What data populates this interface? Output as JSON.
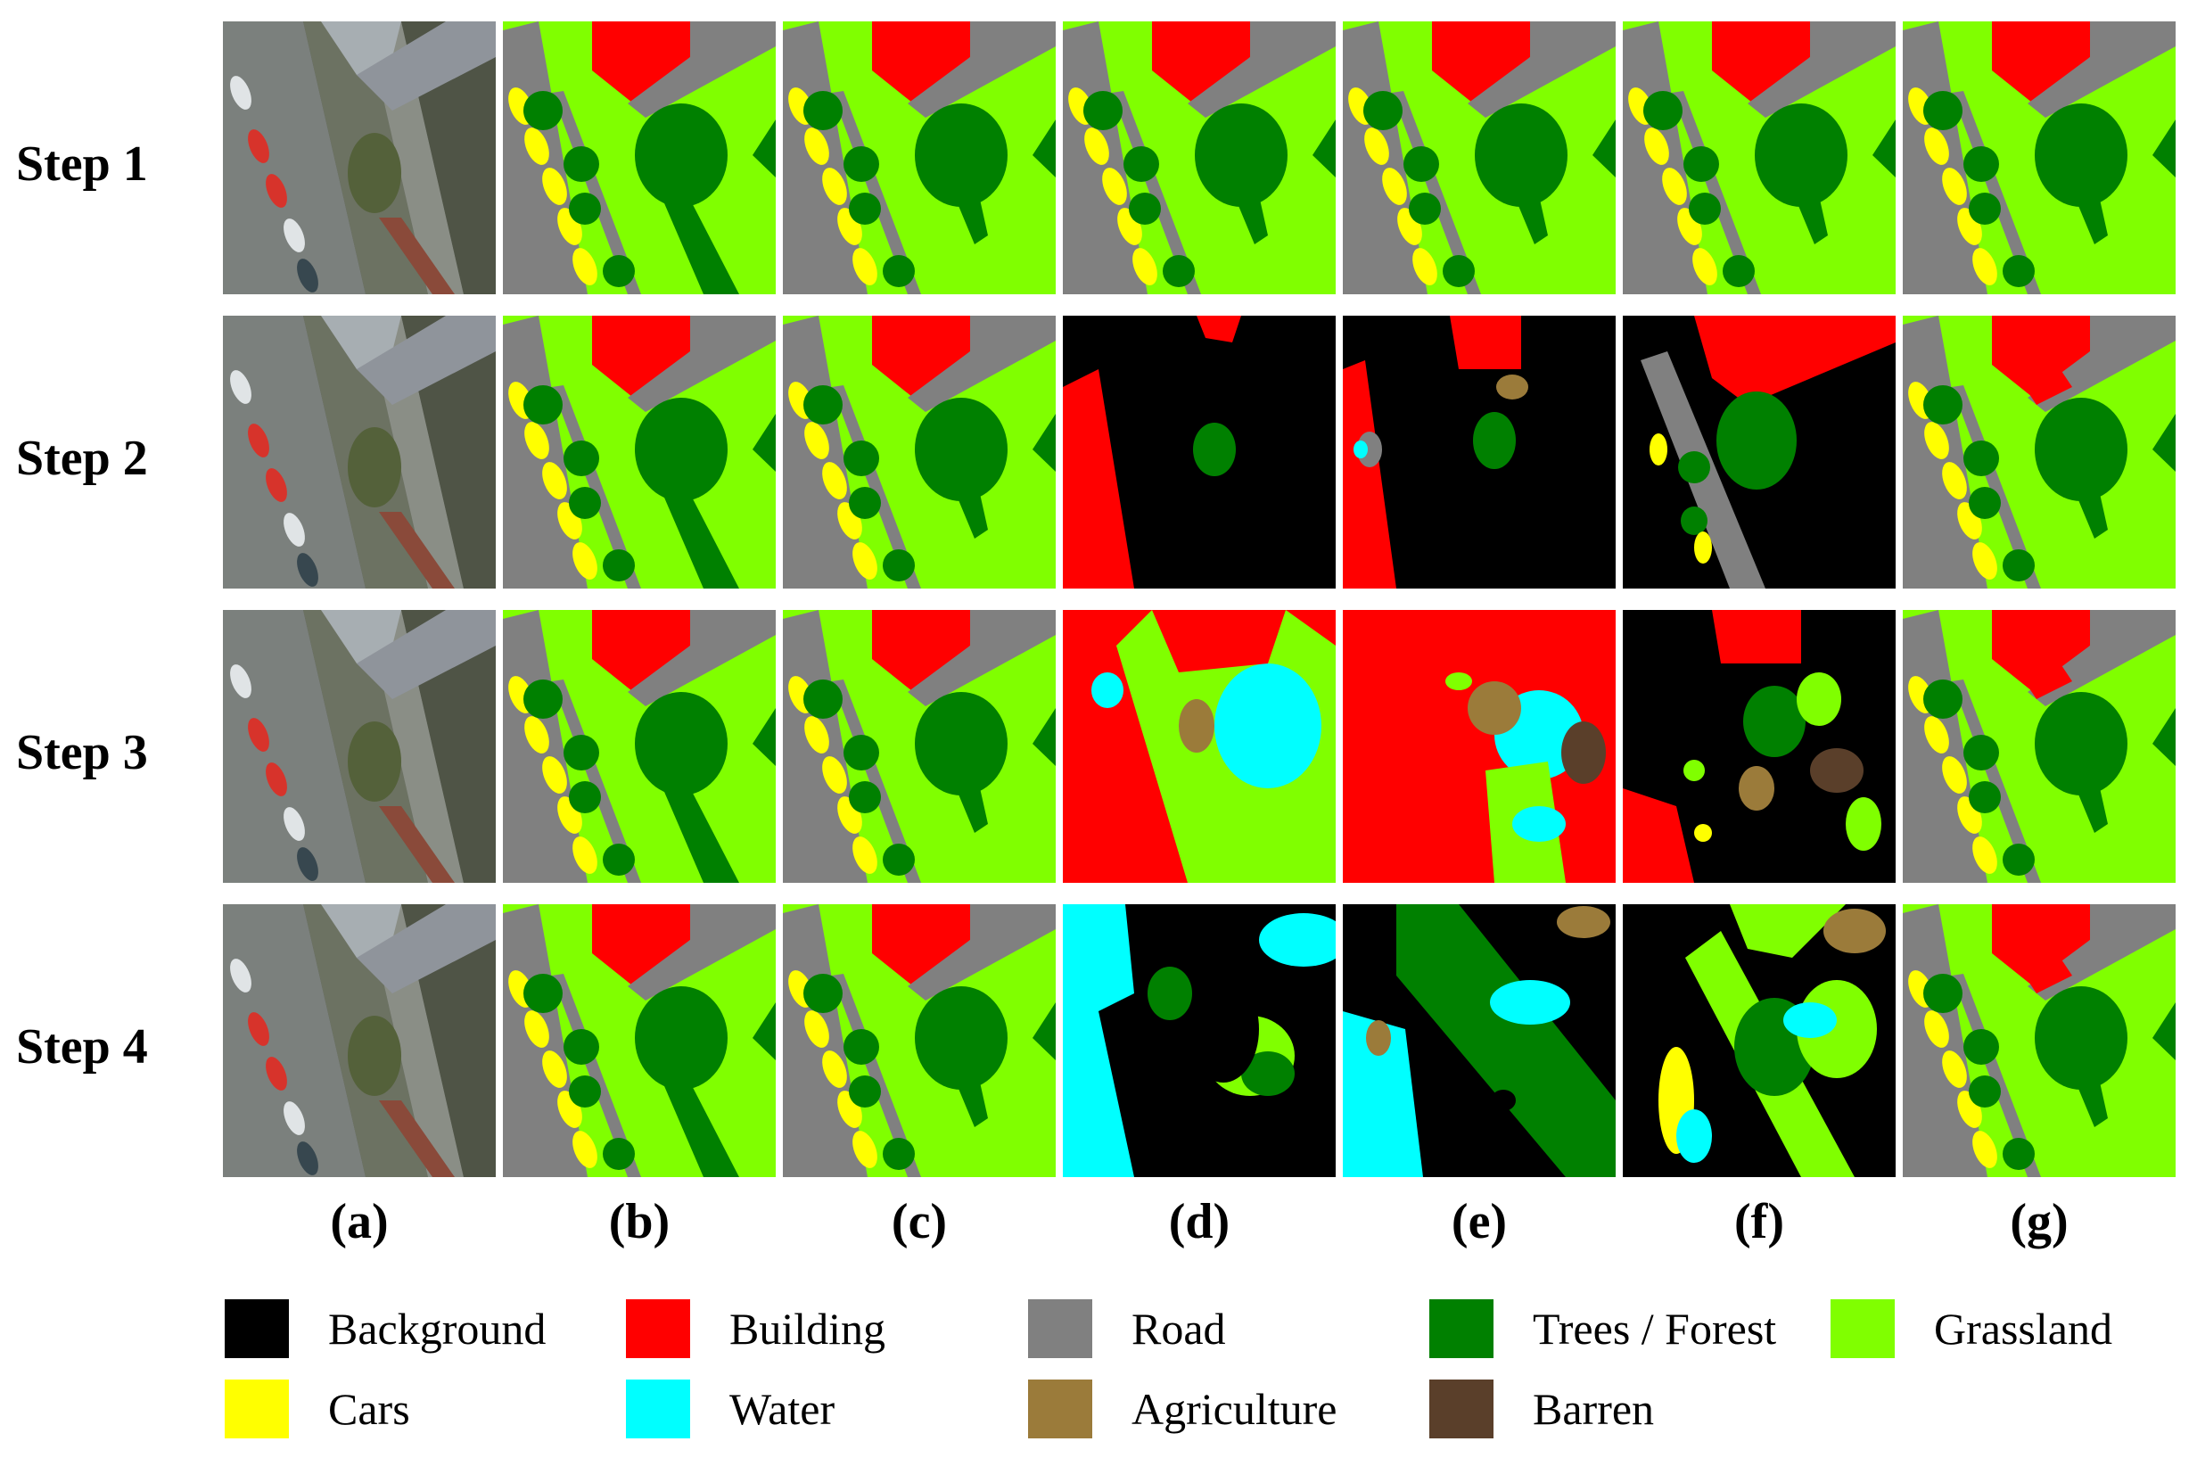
{
  "rows": [
    {
      "label": "Step 1"
    },
    {
      "label": "Step 2"
    },
    {
      "label": "Step 3"
    },
    {
      "label": "Step 4"
    }
  ],
  "columns": [
    {
      "label": "(a)"
    },
    {
      "label": "(b)"
    },
    {
      "label": "(c)"
    },
    {
      "label": "(d)"
    },
    {
      "label": "(e)"
    },
    {
      "label": "(f)"
    },
    {
      "label": "(g)"
    }
  ],
  "legend": [
    {
      "label": "Background",
      "color": "#000000"
    },
    {
      "label": "Building",
      "color": "#ff0000"
    },
    {
      "label": "Road",
      "color": "#808080"
    },
    {
      "label": "Trees / Forest",
      "color": "#008000"
    },
    {
      "label": "Grassland",
      "color": "#80ff00"
    },
    {
      "label": "Cars",
      "color": "#ffff00"
    },
    {
      "label": "Water",
      "color": "#00ffff"
    },
    {
      "label": "Agriculture",
      "color": "#9b7b3a"
    },
    {
      "label": "Barren",
      "color": "#5a3f2a"
    }
  ]
}
